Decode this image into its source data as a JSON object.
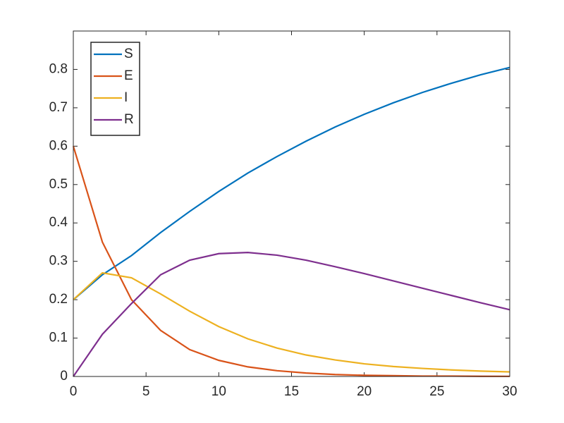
{
  "chart_data": {
    "type": "line",
    "x": [
      0,
      2,
      4,
      6,
      8,
      10,
      12,
      14,
      16,
      18,
      20,
      22,
      24,
      26,
      28,
      30
    ],
    "series": [
      {
        "name": "S",
        "color": "#0072bd",
        "values": [
          0.2,
          0.265,
          0.315,
          0.375,
          0.43,
          0.482,
          0.53,
          0.573,
          0.613,
          0.65,
          0.683,
          0.713,
          0.74,
          0.764,
          0.786,
          0.805
        ]
      },
      {
        "name": "E",
        "color": "#d95319",
        "values": [
          0.6,
          0.35,
          0.2,
          0.12,
          0.07,
          0.042,
          0.025,
          0.015,
          0.009,
          0.005,
          0.003,
          0.002,
          0.001,
          0.001,
          0.0005,
          0.0003
        ]
      },
      {
        "name": "I",
        "color": "#edb120",
        "values": [
          0.2,
          0.27,
          0.257,
          0.215,
          0.17,
          0.13,
          0.098,
          0.074,
          0.056,
          0.043,
          0.033,
          0.026,
          0.021,
          0.017,
          0.014,
          0.012
        ]
      },
      {
        "name": "R",
        "color": "#7e2f8e",
        "values": [
          0,
          0.11,
          0.19,
          0.265,
          0.303,
          0.32,
          0.323,
          0.316,
          0.303,
          0.286,
          0.268,
          0.249,
          0.23,
          0.211,
          0.192,
          0.174
        ]
      }
    ],
    "xlim": [
      0,
      30
    ],
    "xticks": [
      0,
      5,
      10,
      15,
      20,
      25,
      30
    ],
    "ylim": [
      0,
      0.9
    ],
    "yticks": [
      0,
      0.1,
      0.2,
      0.3,
      0.4,
      0.5,
      0.6,
      0.7,
      0.8
    ],
    "grid": false,
    "legend": "northwest"
  }
}
